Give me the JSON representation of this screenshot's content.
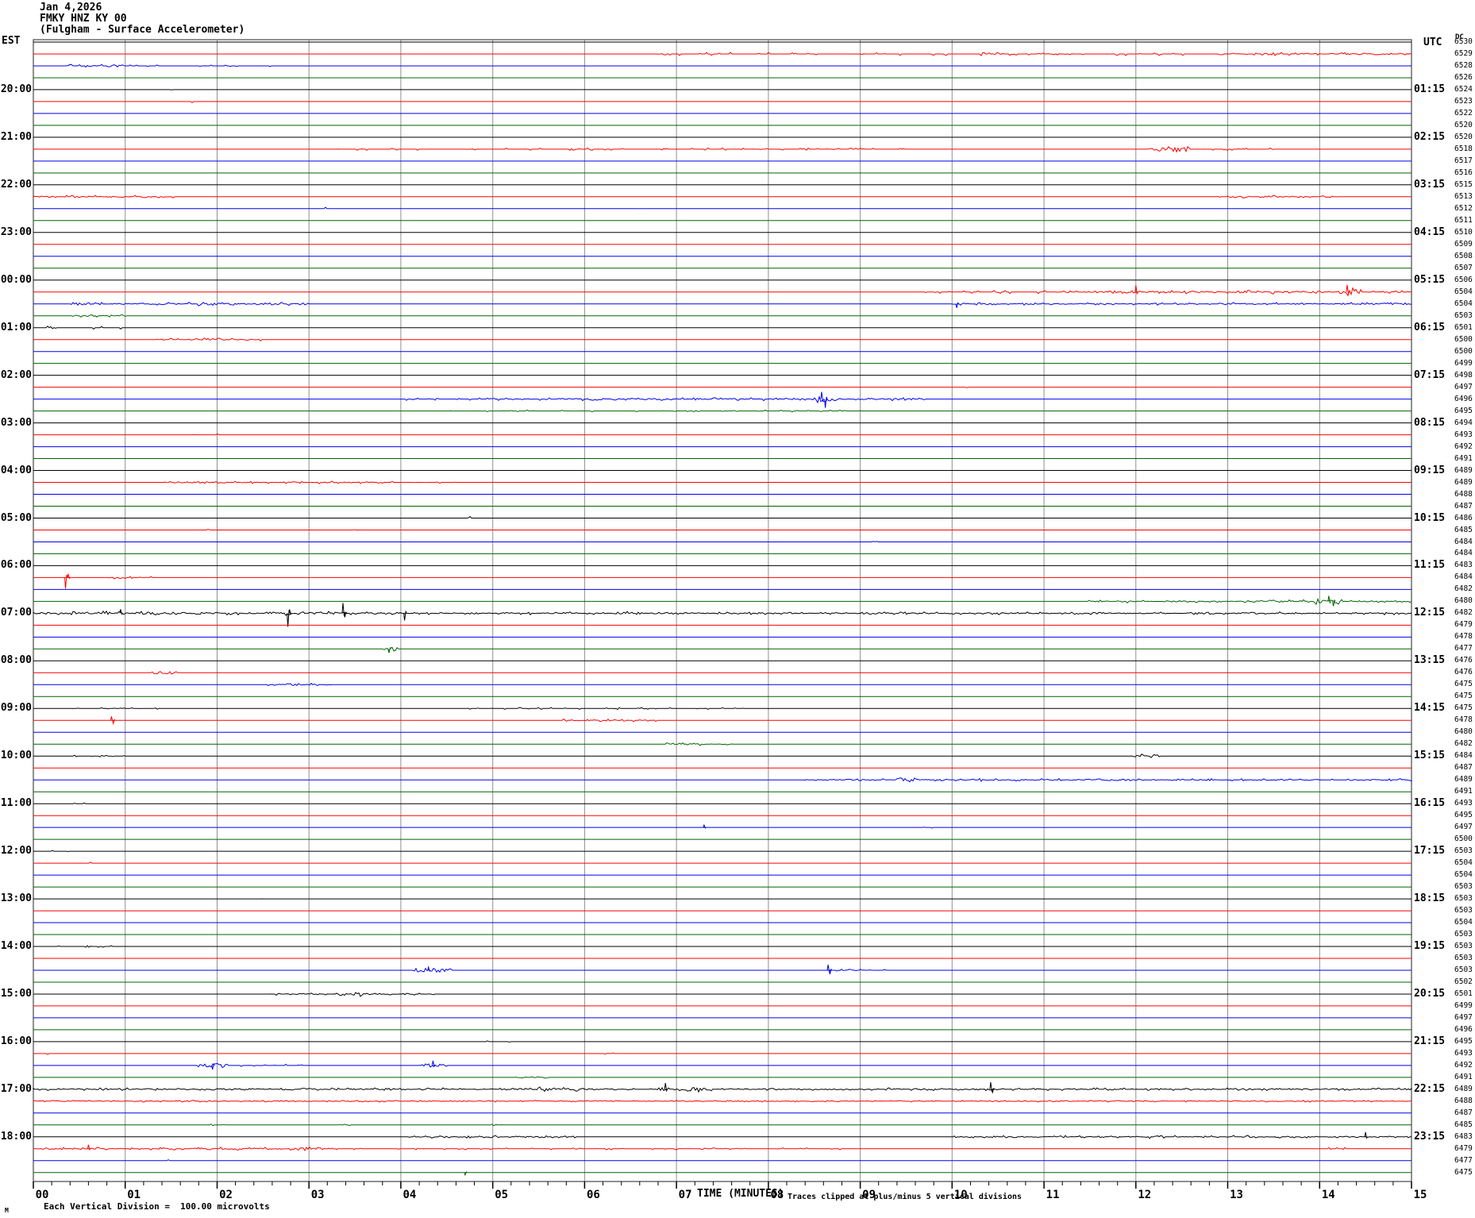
{
  "header": {
    "date": "Jan 4,2026",
    "station": "FMKY HNZ KY 00",
    "description": "(Fulgham - Surface Accelerometer)"
  },
  "axes": {
    "left_timezone": "EST",
    "right_timezone": "UTC",
    "dc_label": "DC",
    "x_title": "TIME (MINUTES)",
    "x_tick_labels": [
      "00",
      "01",
      "02",
      "03",
      "04",
      "05",
      "06",
      "07",
      "08",
      "09",
      "10",
      "11",
      "12",
      "13",
      "14",
      "15"
    ],
    "est_labels": [
      "20:00",
      "21:00",
      "22:00",
      "23:00",
      "00:00",
      "01:00",
      "02:00",
      "03:00",
      "04:00",
      "05:00",
      "06:00",
      "07:00",
      "08:00",
      "09:00",
      "10:00",
      "11:00",
      "12:00",
      "13:00",
      "14:00",
      "15:00",
      "16:00",
      "17:00",
      "18:00"
    ],
    "utc_labels": [
      "01:15",
      "02:15",
      "03:15",
      "04:15",
      "05:15",
      "06:15",
      "07:15",
      "08:15",
      "09:15",
      "10:15",
      "11:15",
      "12:15",
      "13:15",
      "14:15",
      "15:15",
      "16:15",
      "17:15",
      "18:15",
      "19:15",
      "20:15",
      "21:15",
      "22:15",
      "23:15"
    ]
  },
  "footer": {
    "watermark": "M",
    "scale_note": "Each Vertical Division =  100.00 microvolts",
    "clip_note": "Traces clipped at plus/minus 5 vertical divisions"
  },
  "colors": {
    "trace_cycle": [
      "#000000",
      "#ff0000",
      "#0000ee",
      "#006400"
    ],
    "grid": "#8f8f8f",
    "border": "#555555",
    "background": "#ffffff",
    "text": "#000000"
  },
  "chart_data": {
    "type": "line",
    "subtype": "helicorder-seismogram",
    "title": "FMKY HNZ KY 00 (Fulgham - Surface Accelerometer) Jan 4,2026",
    "xlabel": "TIME (MINUTES)",
    "x_range_minutes": [
      0,
      15
    ],
    "rows": 96,
    "minutes_per_row": 15,
    "trace_color_order": "black,red,blue,green repeating; 4 traces per hour",
    "right_column_values": [
      6530,
      6529,
      6528,
      6526,
      6524,
      6523,
      6522,
      6520,
      6520,
      6518,
      6517,
      6516,
      6515,
      6513,
      6512,
      6511,
      6510,
      6509,
      6508,
      6507,
      6506,
      6504,
      6504,
      6503,
      6501,
      6500,
      6500,
      6499,
      6498,
      6497,
      6496,
      6495,
      6494,
      6493,
      6492,
      6491,
      6489,
      6489,
      6488,
      6487,
      6486,
      6485,
      6484,
      6484,
      6483,
      6484,
      6482,
      6480,
      6482,
      6479,
      6478,
      6477,
      6476,
      6476,
      6475,
      6475,
      6475,
      6478,
      6480,
      6482,
      6484,
      6487,
      6489,
      6491,
      6493,
      6495,
      6497,
      6500,
      6503,
      6504,
      6504,
      6503,
      6503,
      6503,
      6504,
      6503,
      6503,
      6503,
      6503,
      6502,
      6501,
      6499,
      6497,
      6496,
      6495,
      6493,
      6492,
      6491,
      6489,
      6488,
      6487,
      6485,
      6483,
      6479,
      6477,
      6475
    ],
    "events": [
      {
        "row": 2,
        "kind": "dots",
        "from": 6.5,
        "to": 12.6,
        "amp": 2
      },
      {
        "row": 2,
        "kind": "noise",
        "from": 12.9,
        "to": 15,
        "amp": 2
      },
      {
        "row": 2,
        "kind": "noise",
        "from": 10.4,
        "to": 11.3,
        "amp": 1.5
      },
      {
        "row": 3,
        "kind": "noise",
        "from": 0.35,
        "to": 1.0,
        "amp": 2
      },
      {
        "row": 3,
        "kind": "dots",
        "from": 1.0,
        "to": 2.6,
        "amp": 1.5
      },
      {
        "row": 5,
        "kind": "dots",
        "from": 1.3,
        "to": 1.5,
        "amp": 1.5
      },
      {
        "row": 6,
        "kind": "dots",
        "from": 1.6,
        "to": 1.8,
        "amp": 2
      },
      {
        "row": 10,
        "kind": "dots",
        "from": 3.0,
        "to": 9.5,
        "amp": 1.5
      },
      {
        "row": 10,
        "kind": "burst",
        "from": 12.15,
        "to": 12.6,
        "amp": 4
      },
      {
        "row": 10,
        "kind": "dots",
        "from": 12.6,
        "to": 13.6,
        "amp": 2
      },
      {
        "row": 14,
        "kind": "noise",
        "from": 0.0,
        "to": 1.6,
        "amp": 2
      },
      {
        "row": 14,
        "kind": "noise",
        "from": 12.9,
        "to": 14.2,
        "amp": 2
      },
      {
        "row": 15,
        "kind": "dots",
        "from": 3.1,
        "to": 3.3,
        "amp": 2
      },
      {
        "row": 15,
        "kind": "dots",
        "from": 6.5,
        "to": 6.7,
        "amp": 2
      },
      {
        "row": 22,
        "kind": "dots",
        "from": 9.5,
        "to": 11.2,
        "amp": 2
      },
      {
        "row": 22,
        "kind": "noise",
        "from": 11.2,
        "to": 15,
        "amp": 2.5
      },
      {
        "row": 22,
        "kind": "spike",
        "at": 12.0,
        "amp": 8
      },
      {
        "row": 22,
        "kind": "burst",
        "from": 14.15,
        "to": 14.45,
        "amp": 5
      },
      {
        "row": 22,
        "kind": "spike",
        "at": 14.3,
        "amp": 9
      },
      {
        "row": 23,
        "kind": "noise",
        "from": 0.4,
        "to": 3.0,
        "amp": 2.5
      },
      {
        "row": 23,
        "kind": "noise",
        "from": 10.0,
        "to": 15,
        "amp": 2
      },
      {
        "row": 23,
        "kind": "spike",
        "at": 10.05,
        "amp": -5
      },
      {
        "row": 24,
        "kind": "noise",
        "from": 0.4,
        "to": 1.0,
        "amp": 2
      },
      {
        "row": 25,
        "kind": "dots",
        "from": 0.05,
        "to": 1.0,
        "amp": 2
      },
      {
        "row": 26,
        "kind": "noise",
        "from": 1.35,
        "to": 2.5,
        "amp": 2
      },
      {
        "row": 30,
        "kind": "dots",
        "from": 10.1,
        "to": 10.2,
        "amp": 2.5
      },
      {
        "row": 31,
        "kind": "dots",
        "from": 4.0,
        "to": 5.0,
        "amp": 1.5
      },
      {
        "row": 31,
        "kind": "noise",
        "from": 5.0,
        "to": 9.7,
        "amp": 2
      },
      {
        "row": 31,
        "kind": "burst",
        "from": 8.5,
        "to": 8.75,
        "amp": 5
      },
      {
        "row": 31,
        "kind": "spike",
        "at": 8.58,
        "amp": 9
      },
      {
        "row": 31,
        "kind": "spike",
        "at": 8.62,
        "amp": -11
      },
      {
        "row": 32,
        "kind": "dots",
        "from": 4.5,
        "to": 9.0,
        "amp": 1.2
      },
      {
        "row": 34,
        "kind": "dots",
        "from": 1.7,
        "to": 2.1,
        "amp": 1.5
      },
      {
        "row": 38,
        "kind": "noise",
        "from": 1.4,
        "to": 3.9,
        "amp": 2
      },
      {
        "row": 38,
        "kind": "dots",
        "from": 3.9,
        "to": 4.6,
        "amp": 1.5
      },
      {
        "row": 41,
        "kind": "dots",
        "from": 4.65,
        "to": 4.75,
        "amp": 2
      },
      {
        "row": 42,
        "kind": "dots",
        "from": 1.85,
        "to": 2.0,
        "amp": 1.5
      },
      {
        "row": 42,
        "kind": "dots",
        "from": 3.4,
        "to": 3.5,
        "amp": 1.5
      },
      {
        "row": 43,
        "kind": "dots",
        "from": 9.0,
        "to": 9.3,
        "amp": 1.5
      },
      {
        "row": 46,
        "kind": "spike",
        "at": 0.35,
        "amp": -14
      },
      {
        "row": 46,
        "kind": "spike",
        "at": 0.38,
        "amp": 4
      },
      {
        "row": 46,
        "kind": "noise",
        "from": 0.8,
        "to": 1.3,
        "amp": 2
      },
      {
        "row": 48,
        "kind": "noise",
        "from": 11.5,
        "to": 15,
        "amp": 2
      },
      {
        "row": 48,
        "kind": "burst",
        "from": 13.95,
        "to": 14.25,
        "amp": 4
      },
      {
        "row": 48,
        "kind": "spike",
        "at": 14.1,
        "amp": 7
      },
      {
        "row": 48,
        "kind": "spike",
        "at": 14.15,
        "amp": -6
      },
      {
        "row": 49,
        "kind": "noise",
        "from": 0,
        "to": 15,
        "amp": 2
      },
      {
        "row": 49,
        "kind": "noise",
        "from": 0,
        "to": 4,
        "amp": 2.5
      },
      {
        "row": 49,
        "kind": "spike",
        "at": 0.95,
        "amp": 5
      },
      {
        "row": 49,
        "kind": "spike",
        "at": 2.77,
        "amp": -17
      },
      {
        "row": 49,
        "kind": "spike",
        "at": 2.79,
        "amp": 4
      },
      {
        "row": 49,
        "kind": "spike",
        "at": 3.37,
        "amp": 13
      },
      {
        "row": 49,
        "kind": "spike",
        "at": 3.39,
        "amp": -5
      },
      {
        "row": 49,
        "kind": "spike",
        "at": 4.04,
        "amp": -9
      },
      {
        "row": 49,
        "kind": "burst",
        "from": 6.3,
        "to": 6.6,
        "amp": 3
      },
      {
        "row": 52,
        "kind": "burst",
        "from": 3.8,
        "to": 3.95,
        "amp": 3
      },
      {
        "row": 52,
        "kind": "spike",
        "at": 3.87,
        "amp": -5
      },
      {
        "row": 54,
        "kind": "burst",
        "from": 1.3,
        "to": 1.55,
        "amp": 3
      },
      {
        "row": 55,
        "kind": "noise",
        "from": 2.55,
        "to": 3.25,
        "amp": 2
      },
      {
        "row": 57,
        "kind": "dots",
        "from": 0.3,
        "to": 1.4,
        "amp": 1.2
      },
      {
        "row": 57,
        "kind": "dots",
        "from": 4.5,
        "to": 8.0,
        "amp": 1.2
      },
      {
        "row": 58,
        "kind": "spike",
        "at": 0.85,
        "amp": 5
      },
      {
        "row": 58,
        "kind": "spike",
        "at": 0.87,
        "amp": -4
      },
      {
        "row": 58,
        "kind": "noise",
        "from": 5.75,
        "to": 6.8,
        "amp": 2
      },
      {
        "row": 60,
        "kind": "noise",
        "from": 6.9,
        "to": 7.6,
        "amp": 2
      },
      {
        "row": 61,
        "kind": "dots",
        "from": 0.4,
        "to": 1.0,
        "amp": 1.2
      },
      {
        "row": 61,
        "kind": "burst",
        "from": 11.95,
        "to": 12.25,
        "amp": 2.5
      },
      {
        "row": 63,
        "kind": "noise",
        "from": 8.4,
        "to": 15,
        "amp": 1.8
      },
      {
        "row": 63,
        "kind": "burst",
        "from": 9.4,
        "to": 9.6,
        "amp": 3.5
      },
      {
        "row": 65,
        "kind": "dots",
        "from": 0.2,
        "to": 0.6,
        "amp": 1
      },
      {
        "row": 67,
        "kind": "spike",
        "at": 7.3,
        "amp": 3
      },
      {
        "row": 67,
        "kind": "dots",
        "from": 9.7,
        "to": 10.05,
        "amp": 1.5
      },
      {
        "row": 69,
        "kind": "dots",
        "from": 0.1,
        "to": 0.4,
        "amp": 1
      },
      {
        "row": 70,
        "kind": "dots",
        "from": 0.5,
        "to": 0.75,
        "amp": 1.5
      },
      {
        "row": 73,
        "kind": "dots",
        "from": 2.4,
        "to": 2.5,
        "amp": 1.5
      },
      {
        "row": 77,
        "kind": "dots",
        "from": 0.1,
        "to": 0.9,
        "amp": 1
      },
      {
        "row": 78,
        "kind": "dots",
        "from": 2.35,
        "to": 2.45,
        "amp": 1.5
      },
      {
        "row": 79,
        "kind": "burst",
        "from": 4.15,
        "to": 4.55,
        "amp": 3
      },
      {
        "row": 79,
        "kind": "spike",
        "at": 4.3,
        "amp": 4
      },
      {
        "row": 79,
        "kind": "spike",
        "at": 8.65,
        "amp": 7
      },
      {
        "row": 79,
        "kind": "spike",
        "at": 8.67,
        "amp": -5
      },
      {
        "row": 79,
        "kind": "noise",
        "from": 8.7,
        "to": 9.3,
        "amp": 1.5
      },
      {
        "row": 81,
        "kind": "noise",
        "from": 2.6,
        "to": 4.35,
        "amp": 2
      },
      {
        "row": 81,
        "kind": "burst",
        "from": 3.35,
        "to": 3.6,
        "amp": 2.5
      },
      {
        "row": 85,
        "kind": "dots",
        "from": 4.8,
        "to": 5.2,
        "amp": 1.2
      },
      {
        "row": 86,
        "kind": "dots",
        "from": 0.1,
        "to": 0.3,
        "amp": 1.5
      },
      {
        "row": 86,
        "kind": "dots",
        "from": 6.1,
        "to": 6.3,
        "amp": 1.5
      },
      {
        "row": 87,
        "kind": "burst",
        "from": 1.8,
        "to": 2.1,
        "amp": 3.5
      },
      {
        "row": 87,
        "kind": "spike",
        "at": 1.95,
        "amp": -5
      },
      {
        "row": 87,
        "kind": "dots",
        "from": 2.1,
        "to": 3.1,
        "amp": 1.5
      },
      {
        "row": 87,
        "kind": "burst",
        "from": 4.2,
        "to": 4.5,
        "amp": 3
      },
      {
        "row": 87,
        "kind": "spike",
        "at": 4.35,
        "amp": 6
      },
      {
        "row": 88,
        "kind": "noise",
        "from": 5.25,
        "to": 5.6,
        "amp": 1.8
      },
      {
        "row": 89,
        "kind": "noise",
        "from": 0,
        "to": 15,
        "amp": 1.8
      },
      {
        "row": 89,
        "kind": "burst",
        "from": 5.5,
        "to": 6.0,
        "amp": 2.5
      },
      {
        "row": 89,
        "kind": "burst",
        "from": 6.8,
        "to": 7.4,
        "amp": 3
      },
      {
        "row": 89,
        "kind": "spike",
        "at": 6.88,
        "amp": 8
      },
      {
        "row": 89,
        "kind": "spike",
        "at": 10.42,
        "amp": 9
      },
      {
        "row": 89,
        "kind": "spike",
        "at": 10.44,
        "amp": -4
      },
      {
        "row": 90,
        "kind": "noise",
        "from": 0,
        "to": 15,
        "amp": 1.3
      },
      {
        "row": 92,
        "kind": "dots",
        "from": 1.9,
        "to": 2.1,
        "amp": 1.2
      },
      {
        "row": 92,
        "kind": "dots",
        "from": 3.3,
        "to": 3.5,
        "amp": 1.2
      },
      {
        "row": 92,
        "kind": "dots",
        "from": 5.0,
        "to": 5.2,
        "amp": 1.2
      },
      {
        "row": 93,
        "kind": "noise",
        "from": 4.1,
        "to": 5.9,
        "amp": 1.8
      },
      {
        "row": 93,
        "kind": "noise",
        "from": 10.0,
        "to": 15,
        "amp": 1.8
      },
      {
        "row": 93,
        "kind": "spike",
        "at": 14.5,
        "amp": 6
      },
      {
        "row": 93,
        "kind": "burst",
        "from": 12.15,
        "to": 12.3,
        "amp": 2.5
      },
      {
        "row": 94,
        "kind": "noise",
        "from": 0,
        "to": 3.3,
        "amp": 2.2
      },
      {
        "row": 94,
        "kind": "spike",
        "at": 0.6,
        "amp": 5
      },
      {
        "row": 94,
        "kind": "burst",
        "from": 2.95,
        "to": 3.15,
        "amp": 3.5
      },
      {
        "row": 94,
        "kind": "dots",
        "from": 3.3,
        "to": 9.0,
        "amp": 1.3
      },
      {
        "row": 94,
        "kind": "dots",
        "from": 14.1,
        "to": 14.3,
        "amp": 1.5
      },
      {
        "row": 95,
        "kind": "dots",
        "from": 1.4,
        "to": 1.5,
        "amp": 1.5
      },
      {
        "row": 96,
        "kind": "dots",
        "from": 1.0,
        "to": 1.3,
        "amp": 1.3
      },
      {
        "row": 96,
        "kind": "spike",
        "at": 4.7,
        "amp": -3
      }
    ]
  }
}
